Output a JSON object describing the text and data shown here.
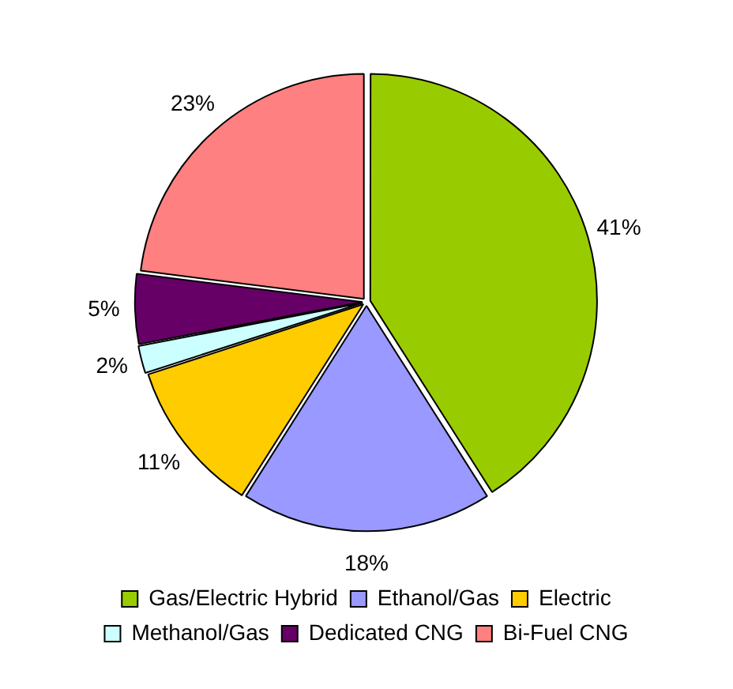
{
  "chart_data": {
    "type": "pie",
    "categories": [
      "Gas/Electric Hybrid",
      "Ethanol/Gas",
      "Electric",
      "Methanol/Gas",
      "Dedicated CNG",
      "Bi-Fuel CNG"
    ],
    "values": [
      41,
      18,
      11,
      2,
      5,
      23
    ],
    "colors": [
      "#99cc00",
      "#9999ff",
      "#ffcc00",
      "#ccffff",
      "#660066",
      "#ff8080"
    ],
    "value_labels": [
      "41%",
      "18%",
      "11%",
      "2%",
      "5%",
      "23%"
    ],
    "legend": "bottom"
  }
}
